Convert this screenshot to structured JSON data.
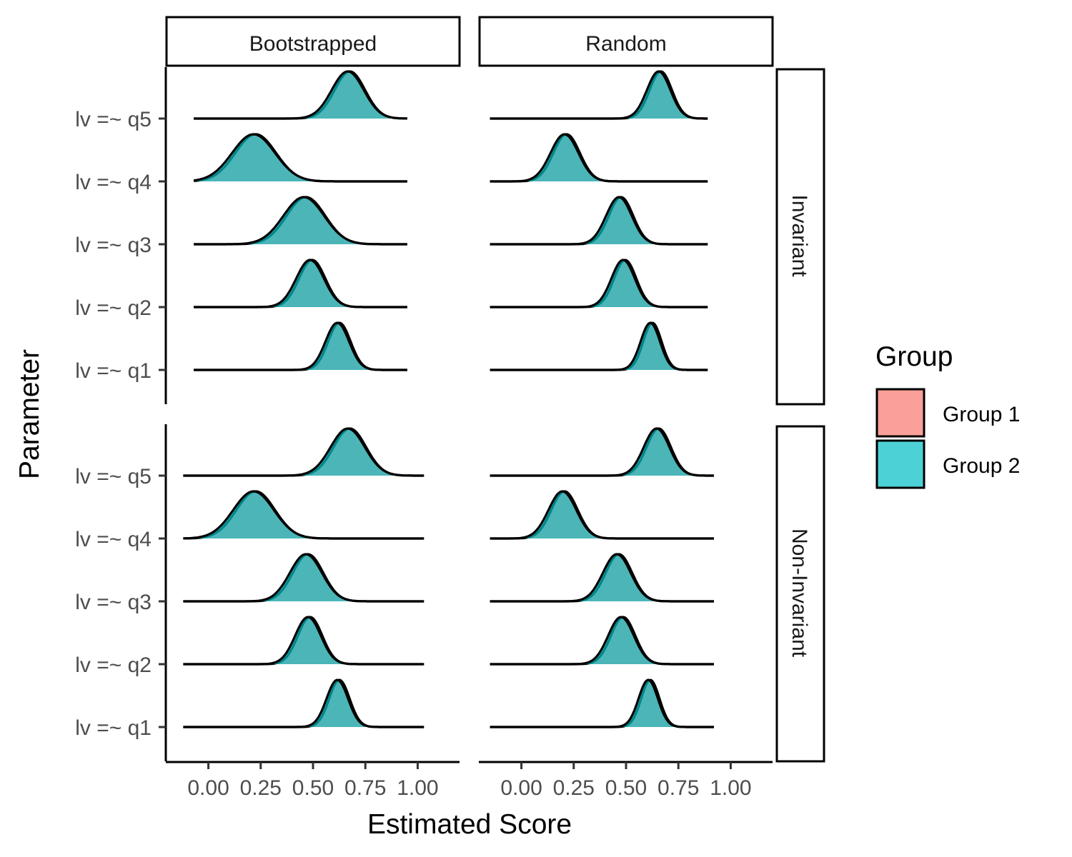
{
  "chart_data": {
    "type": "ridgeline-density",
    "xlabel": "Estimated Score",
    "ylabel": "Parameter",
    "x_ticks": [
      "0.00",
      "0.25",
      "0.50",
      "0.75",
      "1.00"
    ],
    "x_tick_values": [
      0,
      0.25,
      0.5,
      0.75,
      1.0
    ],
    "xlim": [
      -0.2,
      1.2
    ],
    "categories": [
      "lv =~ q1",
      "lv =~ q2",
      "lv =~ q3",
      "lv =~ q4",
      "lv =~ q5"
    ],
    "facet_columns": [
      "Bootstrapped",
      "Random"
    ],
    "facet_rows": [
      "Invariant",
      "Non-Invariant"
    ],
    "legend": {
      "title": "Group",
      "position": "right",
      "entries": [
        {
          "name": "Group 1",
          "color": "#F8766D"
        },
        {
          "name": "Group 2",
          "color": "#00BFC4"
        }
      ]
    },
    "fill_opacity": 0.7,
    "panels": [
      {
        "column": "Bootstrapped",
        "row": "Invariant",
        "range": [
          -0.07,
          0.95
        ],
        "densities": [
          {
            "category": "lv =~ q1",
            "mean": 0.62,
            "sd": 0.055
          },
          {
            "category": "lv =~ q2",
            "mean": 0.49,
            "sd": 0.065
          },
          {
            "category": "lv =~ q3",
            "mean": 0.46,
            "sd": 0.095
          },
          {
            "category": "lv =~ q4",
            "mean": 0.22,
            "sd": 0.1
          },
          {
            "category": "lv =~ q5",
            "mean": 0.67,
            "sd": 0.075
          }
        ]
      },
      {
        "column": "Random",
        "row": "Invariant",
        "range": [
          -0.15,
          0.89
        ],
        "densities": [
          {
            "category": "lv =~ q1",
            "mean": 0.62,
            "sd": 0.045
          },
          {
            "category": "lv =~ q2",
            "mean": 0.49,
            "sd": 0.055
          },
          {
            "category": "lv =~ q3",
            "mean": 0.47,
            "sd": 0.06
          },
          {
            "category": "lv =~ q4",
            "mean": 0.21,
            "sd": 0.065
          },
          {
            "category": "lv =~ q5",
            "mean": 0.66,
            "sd": 0.055
          }
        ]
      },
      {
        "column": "Bootstrapped",
        "row": "Non-Invariant",
        "range": [
          -0.12,
          1.03
        ],
        "densities": [
          {
            "category": "lv =~ q1",
            "mean": 0.62,
            "sd": 0.05
          },
          {
            "category": "lv =~ q2",
            "mean": 0.48,
            "sd": 0.06
          },
          {
            "category": "lv =~ q3",
            "mean": 0.47,
            "sd": 0.075
          },
          {
            "category": "lv =~ q4",
            "mean": 0.22,
            "sd": 0.095
          },
          {
            "category": "lv =~ q5",
            "mean": 0.67,
            "sd": 0.08
          }
        ]
      },
      {
        "column": "Random",
        "row": "Non-Invariant",
        "range": [
          -0.15,
          0.92
        ],
        "densities": [
          {
            "category": "lv =~ q1",
            "mean": 0.61,
            "sd": 0.045
          },
          {
            "category": "lv =~ q2",
            "mean": 0.48,
            "sd": 0.06
          },
          {
            "category": "lv =~ q3",
            "mean": 0.46,
            "sd": 0.065
          },
          {
            "category": "lv =~ q4",
            "mean": 0.2,
            "sd": 0.065
          },
          {
            "category": "lv =~ q5",
            "mean": 0.65,
            "sd": 0.06
          }
        ]
      }
    ]
  }
}
